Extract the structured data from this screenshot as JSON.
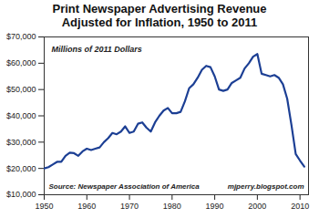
{
  "chart_data": {
    "type": "line",
    "title": "Print Newspaper Advertising Revenue",
    "subtitle": "Adjusted for Inflation, 1950 to 2011",
    "annotations": [
      "Millions of 2011 Dollars",
      "Source: Newspaper Association of America",
      "mjperry.blogspot.com"
    ],
    "x": [
      1950,
      1951,
      1952,
      1953,
      1954,
      1955,
      1956,
      1957,
      1958,
      1959,
      1960,
      1961,
      1962,
      1963,
      1964,
      1965,
      1966,
      1967,
      1968,
      1969,
      1970,
      1971,
      1972,
      1973,
      1974,
      1975,
      1976,
      1977,
      1978,
      1979,
      1980,
      1981,
      1982,
      1983,
      1984,
      1985,
      1986,
      1987,
      1988,
      1989,
      1990,
      1991,
      1992,
      1993,
      1994,
      1995,
      1996,
      1997,
      1998,
      1999,
      2000,
      2001,
      2002,
      2003,
      2004,
      2005,
      2006,
      2007,
      2008,
      2009,
      2010,
      2011
    ],
    "values": [
      20000,
      20500,
      21500,
      22500,
      22500,
      24800,
      26000,
      25800,
      24800,
      26500,
      27500,
      27000,
      27500,
      28000,
      30000,
      31500,
      33500,
      33000,
      34000,
      36000,
      33500,
      34000,
      37000,
      37500,
      35500,
      34000,
      37500,
      40000,
      42000,
      43000,
      41000,
      41000,
      41500,
      45500,
      50500,
      52000,
      54500,
      57500,
      59000,
      58500,
      55000,
      50000,
      49500,
      50000,
      52500,
      53500,
      54500,
      58000,
      60000,
      62500,
      63500,
      56000,
      55500,
      55000,
      55500,
      54500,
      52000,
      46500,
      36500,
      25500,
      23000,
      20700
    ],
    "color": "#1c3f94",
    "xlim": [
      1950,
      2012
    ],
    "xticks": [
      1950,
      1960,
      1970,
      1980,
      1990,
      2000,
      2010
    ],
    "ylim": [
      10000,
      70000
    ],
    "yticks": [
      {
        "value": 10000,
        "label": "$10,000"
      },
      {
        "value": 20000,
        "label": "$20,000"
      },
      {
        "value": 30000,
        "label": "$30,000"
      },
      {
        "value": 40000,
        "label": "$40,000"
      },
      {
        "value": 50000,
        "label": "$50,000"
      },
      {
        "value": 60000,
        "label": "$60,000"
      },
      {
        "value": 70000,
        "label": "$70,000"
      }
    ],
    "grid": false
  }
}
